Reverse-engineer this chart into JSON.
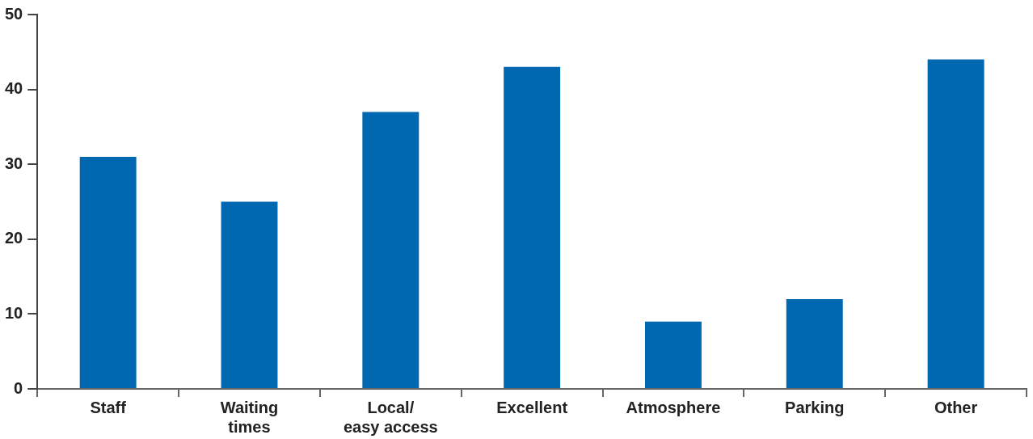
{
  "chart_data": {
    "type": "bar",
    "categories": [
      "Staff",
      "Waiting times",
      "Local/ easy access",
      "Excellent",
      "Atmosphere",
      "Parking",
      "Other"
    ],
    "values": [
      31,
      25,
      37,
      43,
      9,
      12,
      44
    ],
    "color": "#0068b0",
    "ylim": [
      0,
      50
    ],
    "yticks": [
      0,
      10,
      20,
      30,
      40,
      50
    ],
    "grid": false,
    "legend": false
  }
}
